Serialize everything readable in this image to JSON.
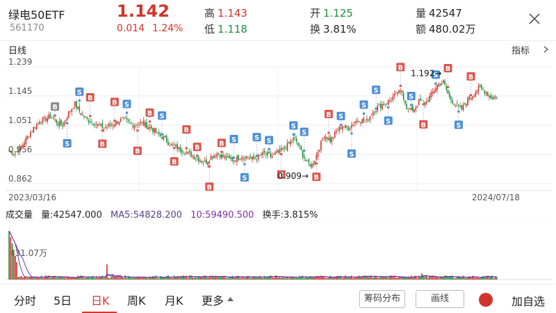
{
  "header": {
    "name": "绿电50ETF",
    "code": "561170",
    "price": "1.142",
    "change": "0.014",
    "change_pct": "1.24%",
    "high_label": "高",
    "high": "1.143",
    "low_label": "低",
    "low": "1.118",
    "open_label": "开",
    "open": "1.125",
    "turnover_label": "换",
    "turnover": "3.81%",
    "volume_label": "量",
    "volume": "42547",
    "amount_label": "额",
    "amount": "480.02万"
  },
  "chart_header": {
    "label": "日线",
    "indicator": "指标"
  },
  "chart_data": {
    "type": "candlestick",
    "price_axis_ticks": [
      "1.239",
      "1.145",
      "1.051",
      "0.956",
      "0.862"
    ],
    "ylim": [
      0.862,
      1.239
    ],
    "x_start": "2023/03/16",
    "x_end": "2024/07/18",
    "max_annotation": "1.192",
    "min_annotation": "0.909",
    "series_approx_close": [
      0.97,
      0.96,
      0.98,
      1.01,
      1.04,
      1.06,
      1.07,
      1.08,
      1.06,
      1.05,
      1.09,
      1.12,
      1.09,
      1.07,
      1.06,
      1.05,
      1.04,
      1.05,
      1.06,
      1.07,
      1.06,
      1.05,
      1.06,
      1.05,
      1.04,
      1.02,
      1.01,
      0.99,
      0.98,
      0.97,
      0.96,
      0.95,
      0.94,
      0.93,
      0.95,
      0.96,
      0.95,
      0.94,
      0.94,
      0.95,
      0.95,
      0.94,
      0.95,
      0.96,
      0.95,
      0.96,
      0.97,
      0.99,
      1.01,
      0.97,
      0.93,
      0.92,
      0.97,
      1.02,
      1.0,
      1.03,
      1.05,
      1.04,
      1.06,
      1.07,
      1.06,
      1.09,
      1.11,
      1.12,
      1.13,
      1.15,
      1.16,
      1.1,
      1.1,
      1.13,
      1.12,
      1.15,
      1.18,
      1.19,
      1.14,
      1.12,
      1.1,
      1.13,
      1.15,
      1.17,
      1.16,
      1.14,
      1.142
    ],
    "buy_sell_markers": [
      {
        "label": "B",
        "color": "#8a8a8a"
      },
      {
        "label": "S",
        "color": "#4d8fd6"
      },
      {
        "label": "S",
        "color": "#4d8fd6"
      },
      {
        "label": "B",
        "color": "#d9574f"
      },
      {
        "label": "B",
        "color": "#d9574f"
      },
      {
        "label": "B",
        "color": "#d9574f"
      },
      {
        "label": "S",
        "color": "#4d8fd6"
      },
      {
        "label": "B",
        "color": "#d9574f"
      },
      {
        "label": "B",
        "color": "#d9574f"
      },
      {
        "label": "S",
        "color": "#4d8fd6"
      },
      {
        "label": "B",
        "color": "#d9574f"
      },
      {
        "label": "B",
        "color": "#d9574f"
      },
      {
        "label": "B",
        "color": "#d9574f"
      },
      {
        "label": "B",
        "color": "#d9574f"
      },
      {
        "label": "B",
        "color": "#d9574f"
      },
      {
        "label": "S",
        "color": "#4d8fd6"
      },
      {
        "label": "S",
        "color": "#4d8fd6"
      },
      {
        "label": "S",
        "color": "#4d8fd6"
      },
      {
        "label": "S",
        "color": "#4d8fd6"
      },
      {
        "label": "B",
        "color": "#d9574f"
      },
      {
        "label": "S",
        "color": "#4d8fd6"
      },
      {
        "label": "S",
        "color": "#4d8fd6"
      },
      {
        "label": "B",
        "color": "#d9574f"
      },
      {
        "label": "B",
        "color": "#d9574f"
      },
      {
        "label": "S",
        "color": "#4d8fd6"
      },
      {
        "label": "S",
        "color": "#4d8fd6"
      },
      {
        "label": "S",
        "color": "#4d8fd6"
      },
      {
        "label": "S",
        "color": "#4d8fd6"
      },
      {
        "label": "S",
        "color": "#4d8fd6"
      },
      {
        "label": "B",
        "color": "#d9574f"
      },
      {
        "label": "S",
        "color": "#4d8fd6"
      },
      {
        "label": "B",
        "color": "#d9574f"
      },
      {
        "label": "S",
        "color": "#4d8fd6"
      },
      {
        "label": "B",
        "color": "#d9574f"
      },
      {
        "label": "S",
        "color": "#4d8fd6"
      },
      {
        "label": "B",
        "color": "#d9574f"
      }
    ],
    "up_color": "#d2342c",
    "down_color": "#1f8f3a"
  },
  "volume": {
    "title": "成交量",
    "vol_label": "量:42547.000",
    "ma5_label": "MA5:54828.200",
    "ma10_label": "10:59490.500",
    "turnover_label": "换手:3.815%",
    "max_label": "431.07万",
    "ma5_color": "#5b3f8a",
    "ma10_color": "#7b2fa8"
  },
  "bottom_bar": {
    "tabs": [
      "分时",
      "5日",
      "日K",
      "周K",
      "月K",
      "更多"
    ],
    "chip_dist": "筹码分布",
    "draw_line": "画线",
    "add_fav": "加自选"
  }
}
